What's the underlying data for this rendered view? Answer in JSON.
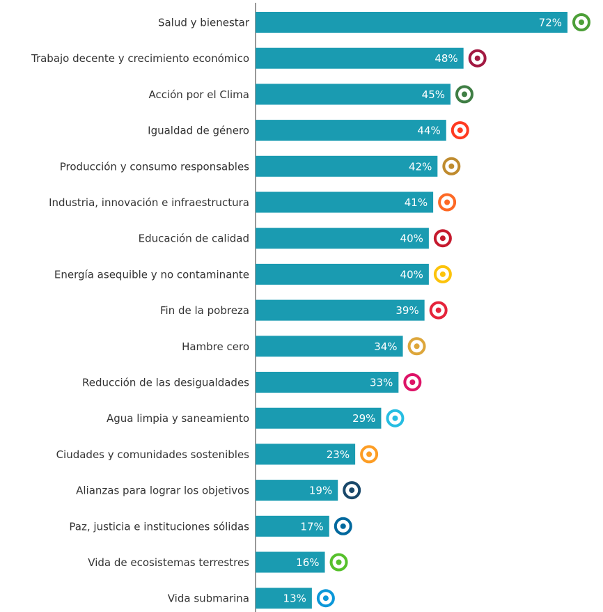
{
  "chart_data": {
    "type": "bar",
    "orientation": "horizontal",
    "color": "#1a9bb1",
    "categories": [
      "Salud y bienestar",
      "Trabajo decente y crecimiento económico",
      "Acción por el Clima",
      "Igualdad de género",
      "Producción y consumo responsables",
      "Industria, innovación e infraestructura",
      "Educación de calidad",
      "Energía asequible y no contaminante",
      "Fin de la pobreza",
      "Hambre cero",
      "Reducción de las desigualdades",
      "Agua limpia y saneamiento",
      "Ciudades y comunidades sostenibles",
      "Alianzas para lograr los objetivos",
      "Paz, justicia e instituciones sólidas",
      "Vida de ecosistemas terrestres",
      "Vida submarina"
    ],
    "values": [
      72,
      48,
      45,
      44,
      42,
      41,
      40,
      40,
      39,
      34,
      33,
      29,
      23,
      19,
      17,
      16,
      13
    ],
    "value_labels": [
      "72%",
      "48%",
      "45%",
      "44%",
      "42%",
      "41%",
      "40%",
      "40%",
      "39%",
      "34%",
      "33%",
      "29%",
      "23%",
      "19%",
      "17%",
      "16%",
      "13%"
    ]
  }
}
